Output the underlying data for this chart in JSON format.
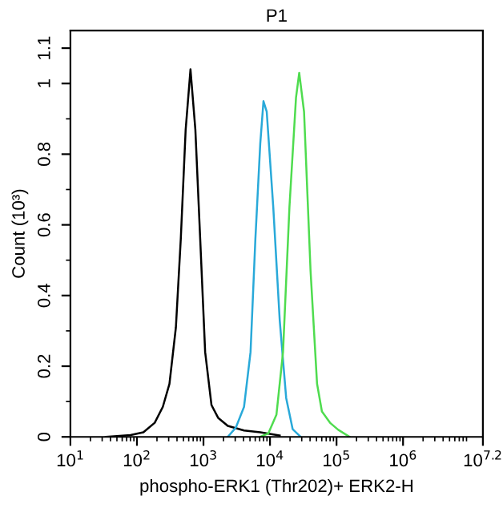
{
  "chart_data": {
    "type": "line",
    "title": "P1",
    "xlabel": "phospho-ERK1 (Thr202)+ ERK2-H",
    "ylabel": "Count (10³)",
    "log": "x",
    "grid": false,
    "legend": false,
    "marker": "none",
    "line_style": "solid",
    "xlim": [
      10,
      15848932
    ],
    "ylim": [
      0,
      1.15
    ],
    "xticks": [
      {
        "value": 10,
        "label": "10$^{1}$"
      },
      {
        "value": 100,
        "label": "10$^{2}$"
      },
      {
        "value": 1000,
        "label": "10$^{3}$"
      },
      {
        "value": 10000,
        "label": "10$^{4}$"
      },
      {
        "value": 100000,
        "label": "10$^{5}$"
      },
      {
        "value": 1000000,
        "label": "10$^{6}$"
      },
      {
        "value": 15848932,
        "label": "10$^{7.2}$"
      }
    ],
    "yticks": [
      0,
      0.2,
      0.4,
      0.6,
      0.8,
      1,
      1.1
    ],
    "series": [
      {
        "color": "#000000",
        "x": [
          34,
          80,
          125,
          185,
          245,
          308,
          385,
          456,
          540,
          638,
          755,
          893,
          1060,
          1320,
          1660,
          2320,
          4070,
          7140,
          14000
        ],
        "values": [
          0,
          0.005,
          0.013,
          0.04,
          0.085,
          0.15,
          0.31,
          0.56,
          0.87,
          1.04,
          0.87,
          0.56,
          0.24,
          0.09,
          0.054,
          0.031,
          0.018,
          0.013,
          0.004
        ]
      },
      {
        "color": "#29a9d9",
        "x": [
          2320,
          3080,
          4070,
          5100,
          6030,
          7140,
          7980,
          8930,
          11200,
          14000,
          17500,
          21900,
          29000
        ],
        "values": [
          0,
          0.027,
          0.085,
          0.24,
          0.56,
          0.83,
          0.95,
          0.92,
          0.65,
          0.33,
          0.11,
          0.022,
          0
        ]
      },
      {
        "color": "#4fdc4f",
        "x": [
          7140,
          9460,
          12500,
          15700,
          19600,
          24600,
          27500,
          32500,
          40700,
          51000,
          60300,
          79800,
          106000,
          157000
        ],
        "values": [
          0,
          0.01,
          0.063,
          0.24,
          0.65,
          0.96,
          1.03,
          0.92,
          0.47,
          0.15,
          0.072,
          0.04,
          0.02,
          0
        ]
      }
    ]
  }
}
